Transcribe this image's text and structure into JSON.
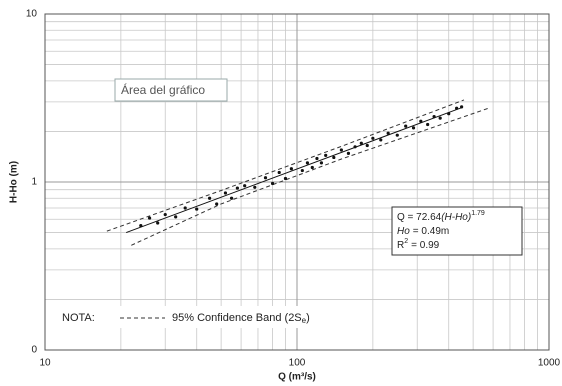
{
  "chart_data": {
    "type": "scatter",
    "x_label": "Q (m³/s)",
    "y_label": "H-Ho (m)",
    "log_x": true,
    "log_y": true,
    "grid": true,
    "xlim": [
      10,
      1000
    ],
    "ylim": [
      0.1,
      10
    ],
    "xticks": [
      10,
      100,
      1000
    ],
    "yticks": [
      {
        "value": 0.1,
        "label": "0"
      },
      1,
      10
    ],
    "xminorticks": [
      20,
      30,
      40,
      50,
      60,
      70,
      80,
      90,
      200,
      300,
      400,
      500,
      600,
      700,
      800,
      900
    ],
    "yminorticks": [
      0.2,
      0.3,
      0.4,
      0.5,
      0.6,
      0.7,
      0.8,
      0.9,
      2,
      3,
      4,
      5,
      6,
      7,
      8,
      9
    ],
    "points": {
      "color": "#111111",
      "x": [
        24,
        26,
        28,
        30,
        33,
        36,
        40,
        45,
        48,
        52,
        55,
        58,
        62,
        68,
        75,
        80,
        85,
        90,
        95,
        105,
        110,
        115,
        120,
        125,
        130,
        140,
        150,
        160,
        170,
        180,
        190,
        200,
        215,
        230,
        250,
        270,
        290,
        310,
        330,
        350,
        370,
        400,
        430,
        450
      ],
      "y": [
        0.55,
        0.61,
        0.57,
        0.64,
        0.62,
        0.7,
        0.69,
        0.8,
        0.74,
        0.86,
        0.8,
        0.92,
        0.95,
        0.93,
        1.06,
        0.98,
        1.14,
        1.05,
        1.2,
        1.17,
        1.3,
        1.22,
        1.38,
        1.3,
        1.44,
        1.4,
        1.55,
        1.48,
        1.62,
        1.7,
        1.65,
        1.82,
        1.78,
        1.95,
        1.9,
        2.15,
        2.1,
        2.3,
        2.2,
        2.45,
        2.4,
        2.55,
        2.75,
        2.8
      ]
    },
    "fit": {
      "color": "#111111",
      "x": [
        21,
        450
      ],
      "y": [
        0.5,
        2.77
      ]
    },
    "upper_band": {
      "color": "#333333",
      "x": [
        17.6,
        50,
        150,
        460
      ],
      "y": [
        0.51,
        0.89,
        1.63,
        3.08
      ]
    },
    "lower_band": {
      "color": "#333333",
      "x": [
        22,
        50,
        150,
        580
      ],
      "y": [
        0.42,
        0.74,
        1.37,
        2.76
      ]
    },
    "equation": {
      "lhs": "Q = 72.64",
      "base": "(H-Ho)",
      "exponent": "1.79"
    },
    "ho": {
      "symbol": "Ho",
      "value": "= 0.49m"
    },
    "r2": {
      "symbol": "R",
      "exponent": "2",
      "value": "= 0.99"
    },
    "note": {
      "label": "NOTA:",
      "text": "95% Confidence Band (2S",
      "subscript": "e",
      "close": ")"
    },
    "tooltip": "Área del gráfico"
  }
}
